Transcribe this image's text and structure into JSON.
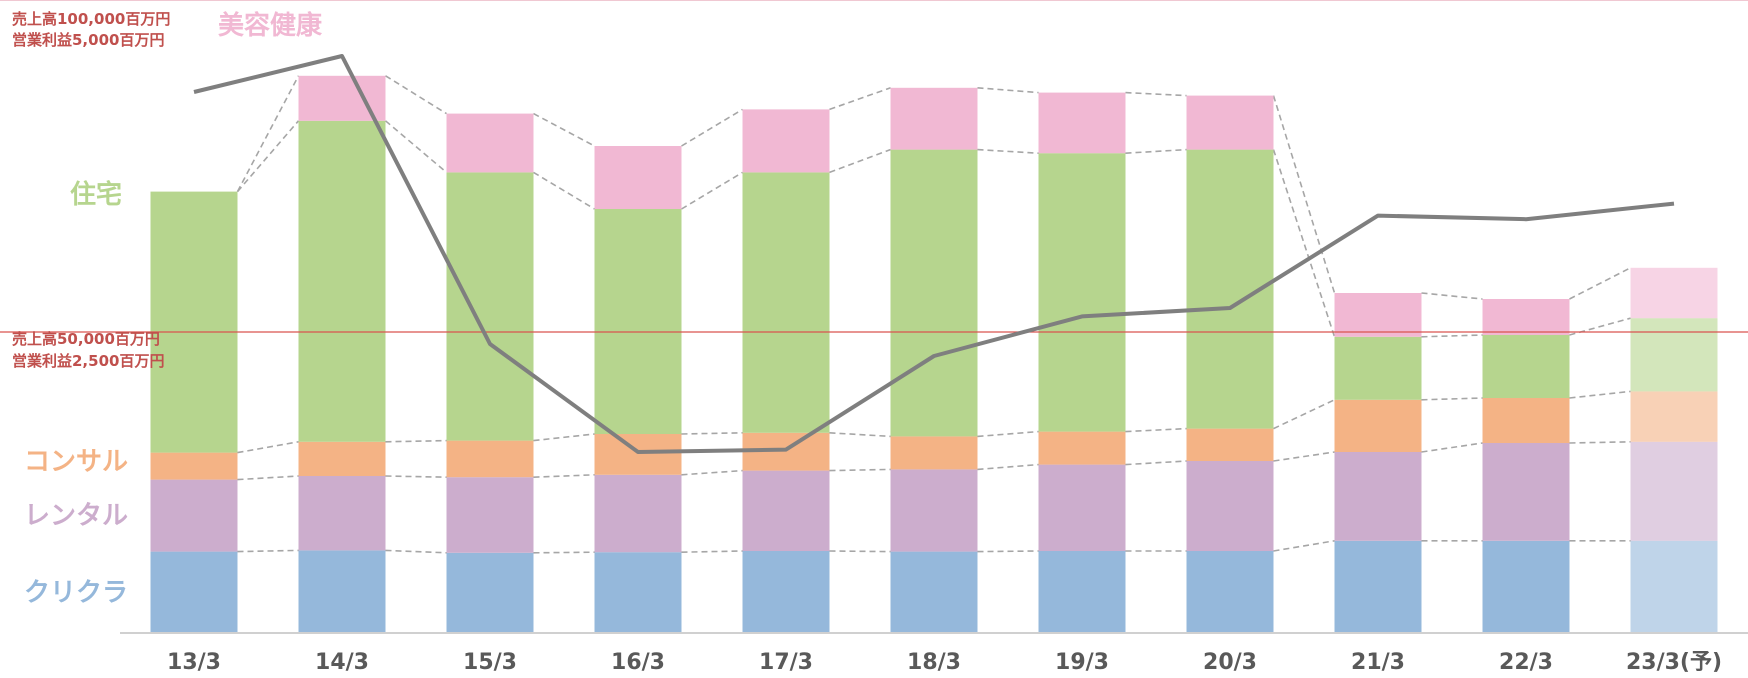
{
  "chart_data": {
    "type": "bar",
    "stacked": true,
    "categories": [
      "13/3",
      "14/3",
      "15/3",
      "16/3",
      "17/3",
      "18/3",
      "19/3",
      "20/3",
      "21/3",
      "22/3",
      "23/3(予)"
    ],
    "forecast_categories": [
      "23/3(予)"
    ],
    "value_unit": "百万円",
    "series": [
      {
        "name": "クリクラ",
        "color": "#95b8db",
        "values": [
          13400,
          13600,
          13200,
          13300,
          13500,
          13400,
          13500,
          13500,
          15200,
          15200,
          15200
        ]
      },
      {
        "name": "レンタル",
        "color": "#ccadcd",
        "values": [
          12000,
          12400,
          12600,
          12900,
          13400,
          13700,
          14400,
          15000,
          14800,
          16300,
          16500
        ]
      },
      {
        "name": "コンサル",
        "color": "#f4b385",
        "values": [
          4500,
          5700,
          6100,
          6800,
          6300,
          5500,
          5500,
          5400,
          8700,
          7500,
          8400
        ]
      },
      {
        "name": "住宅",
        "color": "#b6d58e",
        "values": [
          43500,
          53500,
          44700,
          37500,
          43400,
          47800,
          46400,
          46500,
          10500,
          10500,
          12200
        ]
      },
      {
        "name": "美容健康",
        "color": "#f1b8d3",
        "values": [
          0,
          7500,
          9800,
          10500,
          10500,
          10300,
          10100,
          9000,
          7300,
          6000,
          8400
        ]
      }
    ],
    "line_series": {
      "color": "#7f7f7f",
      "values": [
        4500,
        4800,
        2400,
        1500,
        1520,
        2300,
        2630,
        2700,
        3470,
        3440,
        3570
      ]
    },
    "primary_axis": {
      "min": 0,
      "max": 100000,
      "unit": "百万円"
    },
    "secondary_axis": {
      "min": 0,
      "max": 5000,
      "unit": "百万円"
    },
    "reference_line": {
      "color": "#d9534f",
      "sales_value": 50000,
      "label_top": {
        "line1": "売上高100,000百万円",
        "line2": "営業利益5,000百万円"
      },
      "label_mid": {
        "line1": "売上高50,000百万円",
        "line2": "営業利益2,500百万円"
      }
    },
    "legend_placement": "left, inline beside segments",
    "grid": false
  }
}
